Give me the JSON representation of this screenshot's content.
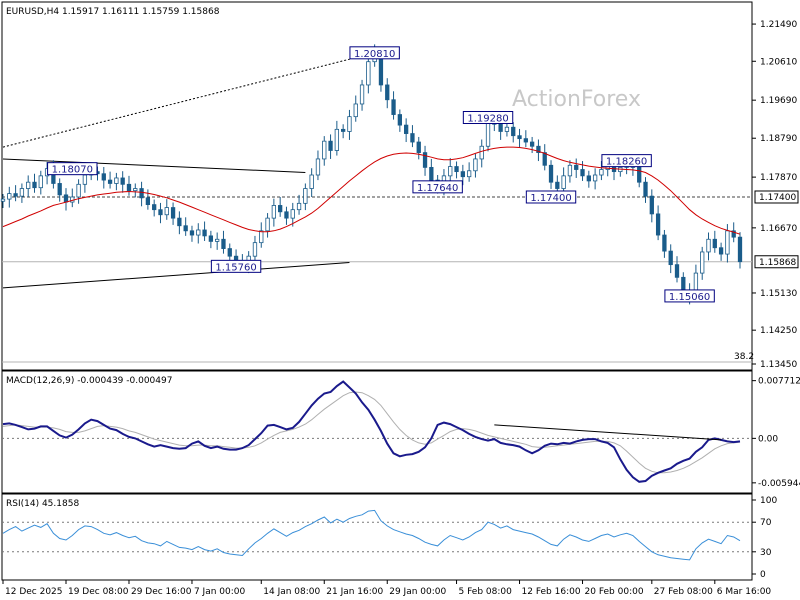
{
  "chart_data": [
    {
      "type": "candlestick",
      "header": "EURUSD,H4  1.15917 1.16111 1.15759 1.15868",
      "watermark": "ActionForex",
      "ylim": [
        1.1345,
        1.2187
      ],
      "y_ticks": [
        "1.21490",
        "1.20610",
        "1.19690",
        "1.18790",
        "1.17870",
        "1.16670",
        "1.15130",
        "1.14250",
        "1.13450"
      ],
      "y_tick_values": [
        1.2149,
        1.2061,
        1.1969,
        1.1879,
        1.1787,
        1.1667,
        1.1513,
        1.1425,
        1.1345
      ],
      "current_price": "1.15868",
      "current_price_value": 1.15868,
      "level_marker": "1.17400",
      "level_marker_value": 1.174,
      "fib_label": "38.2",
      "price_labels": [
        {
          "text": "1.20810",
          "x_index": 59,
          "value": 1.2081
        },
        {
          "text": "1.19280",
          "x_index": 77,
          "value": 1.1928
        },
        {
          "text": "1.18070",
          "x_index": 11,
          "value": 1.1807
        },
        {
          "text": "1.17640",
          "x_index": 69,
          "value": 1.1764
        },
        {
          "text": "1.18260",
          "x_index": 99,
          "value": 1.1826
        },
        {
          "text": "1.17400",
          "x_index": 87,
          "value": 1.174
        },
        {
          "text": "1.15760",
          "x_index": 37,
          "value": 1.1576
        },
        {
          "text": "1.15060",
          "x_index": 109,
          "value": 1.1506
        }
      ],
      "close": [
        1.1735,
        1.1748,
        1.1742,
        1.176,
        1.1775,
        1.1762,
        1.179,
        1.1807,
        1.1772,
        1.1745,
        1.1728,
        1.174,
        1.177,
        1.1792,
        1.18,
        1.1795,
        1.178,
        1.1772,
        1.1785,
        1.177,
        1.1755,
        1.176,
        1.1738,
        1.1722,
        1.171,
        1.1698,
        1.1715,
        1.169,
        1.1672,
        1.166,
        1.165,
        1.1662,
        1.1648,
        1.1635,
        1.164,
        1.1618,
        1.16,
        1.1585,
        1.1576,
        1.16,
        1.1632,
        1.166,
        1.169,
        1.172,
        1.1705,
        1.169,
        1.171,
        1.1725,
        1.176,
        1.1792,
        1.183,
        1.1872,
        1.185,
        1.19,
        1.1895,
        1.193,
        1.196,
        1.2005,
        1.206,
        1.2081,
        1.2005,
        1.197,
        1.1935,
        1.191,
        1.189,
        1.187,
        1.1845,
        1.181,
        1.178,
        1.1764,
        1.179,
        1.1812,
        1.18,
        1.1788,
        1.1802,
        1.183,
        1.186,
        1.192,
        1.1912,
        1.1895,
        1.1905,
        1.1885,
        1.1878,
        1.187,
        1.186,
        1.1845,
        1.1815,
        1.1775,
        1.176,
        1.179,
        1.1815,
        1.1805,
        1.179,
        1.1778,
        1.1792,
        1.1805,
        1.1812,
        1.18,
        1.181,
        1.182,
        1.181,
        1.1775,
        1.1742,
        1.17,
        1.165,
        1.1612,
        1.158,
        1.155,
        1.152,
        1.1506,
        1.156,
        1.161,
        1.164,
        1.162,
        1.1605,
        1.166,
        1.1645,
        1.1587
      ],
      "ma": [
        1.167,
        1.1676,
        1.1682,
        1.1688,
        1.1695,
        1.1701,
        1.1707,
        1.1714,
        1.172,
        1.1724,
        1.1728,
        1.1732,
        1.1736,
        1.1739,
        1.1742,
        1.1745,
        1.1747,
        1.1749,
        1.1751,
        1.1752,
        1.1753,
        1.1752,
        1.1751,
        1.1749,
        1.1746,
        1.1742,
        1.1738,
        1.1733,
        1.1728,
        1.1722,
        1.1716,
        1.171,
        1.1704,
        1.1698,
        1.1692,
        1.1686,
        1.168,
        1.1674,
        1.1668,
        1.1663,
        1.166,
        1.1658,
        1.1658,
        1.166,
        1.1664,
        1.167,
        1.1677,
        1.1685,
        1.1693,
        1.1702,
        1.1713,
        1.1726,
        1.1739,
        1.1752,
        1.1765,
        1.1778,
        1.179,
        1.1802,
        1.1813,
        1.1823,
        1.1831,
        1.1837,
        1.1841,
        1.1843,
        1.1844,
        1.1843,
        1.1841,
        1.1838,
        1.1834,
        1.183,
        1.1828,
        1.1828,
        1.183,
        1.1833,
        1.1838,
        1.1843,
        1.1848,
        1.1852,
        1.1855,
        1.1857,
        1.1858,
        1.1858,
        1.1857,
        1.1855,
        1.1852,
        1.1848,
        1.1843,
        1.1837,
        1.1831,
        1.1826,
        1.1822,
        1.1819,
        1.1816,
        1.1813,
        1.1811,
        1.1809,
        1.1808,
        1.1807,
        1.1806,
        1.1805,
        1.1804,
        1.1802,
        1.1798,
        1.179,
        1.178,
        1.1768,
        1.1755,
        1.174,
        1.1725,
        1.171,
        1.1698,
        1.1688,
        1.168,
        1.1672,
        1.1666,
        1.1661,
        1.1657,
        1.1652
      ],
      "ma_color": "#d00000",
      "up_color": "#1a5c8a",
      "down_color": "#1a5c8a",
      "lines": [
        {
          "style": "dashed",
          "from": [
            0,
            1.1858
          ],
          "to": [
            59,
            1.2081
          ]
        },
        {
          "style": "solid",
          "from": [
            0,
            1.183
          ],
          "to": [
            48,
            1.1798
          ]
        },
        {
          "style": "solid",
          "from": [
            0,
            1.1525
          ],
          "to": [
            55,
            1.1585
          ]
        }
      ]
    },
    {
      "type": "line",
      "label": "MACD(12,26,9) -0.000439 -0.000497",
      "ylim": [
        -0.0065,
        0.0082
      ],
      "y_ticks": [
        "0.007712",
        "0.00",
        "-0.005944"
      ],
      "y_tick_values": [
        0.007712,
        0.0,
        -0.005944
      ],
      "zero_level": 0.0,
      "series": [
        {
          "values": [
            0.0019,
            0.002,
            0.0018,
            0.0015,
            0.0012,
            0.0013,
            0.0016,
            0.0016,
            0.001,
            0.0004,
            0.0001,
            0.0005,
            0.0012,
            0.002,
            0.0025,
            0.0023,
            0.0018,
            0.0013,
            0.0011,
            0.0006,
            0.0002,
            0.0,
            -0.0004,
            -0.0008,
            -0.0011,
            -0.0009,
            -0.0011,
            -0.0013,
            -0.0014,
            -0.0013,
            -0.0007,
            -0.0004,
            -0.001,
            -0.0013,
            -0.0011,
            -0.0014,
            -0.0015,
            -0.0015,
            -0.0013,
            -0.0009,
            -0.0001,
            0.0007,
            0.0017,
            0.0018,
            0.0015,
            0.0012,
            0.0014,
            0.0022,
            0.0033,
            0.0044,
            0.0053,
            0.006,
            0.0062,
            0.007,
            0.0076,
            0.0068,
            0.006,
            0.0048,
            0.0038,
            0.0025,
            0.001,
            -0.0007,
            -0.002,
            -0.0024,
            -0.0022,
            -0.0021,
            -0.0018,
            -0.0012,
            0.0,
            0.0018,
            0.0021,
            0.0019,
            0.0015,
            0.0011,
            0.0006,
            0.0002,
            -0.0001,
            -0.0003,
            -0.0001,
            -0.0006,
            -0.0008,
            -0.0009,
            -0.0011,
            -0.0016,
            -0.002,
            -0.0016,
            -0.001,
            -0.0007,
            -0.0008,
            -0.0006,
            -0.0007,
            -0.0004,
            -0.0002,
            -0.0001,
            -0.0001,
            -0.0004,
            -0.0006,
            -0.0012,
            -0.0028,
            -0.0042,
            -0.0052,
            -0.0058,
            -0.0057,
            -0.005,
            -0.0046,
            -0.0043,
            -0.004,
            -0.0034,
            -0.003,
            -0.0027,
            -0.0018,
            -0.0012,
            -0.0002,
            0.0,
            -0.0002,
            -0.0004,
            -0.0005,
            -0.0004
          ],
          "color": "#1a1a8c"
        },
        {
          "values": [
            0.0016,
            0.0017,
            0.0018,
            0.0017,
            0.0016,
            0.0015,
            0.0015,
            0.0015,
            0.0014,
            0.0012,
            0.0009,
            0.0008,
            0.0008,
            0.001,
            0.0013,
            0.0016,
            0.0017,
            0.0016,
            0.0015,
            0.0013,
            0.001,
            0.0008,
            0.0005,
            0.0002,
            -0.0001,
            -0.0003,
            -0.0005,
            -0.0007,
            -0.0009,
            -0.001,
            -0.001,
            -0.0009,
            -0.0009,
            -0.001,
            -0.001,
            -0.0011,
            -0.0012,
            -0.0013,
            -0.0013,
            -0.0012,
            -0.001,
            -0.0006,
            -0.0001,
            0.0004,
            0.0008,
            0.001,
            0.0012,
            0.0015,
            0.0019,
            0.0025,
            0.0032,
            0.0039,
            0.0045,
            0.0051,
            0.0057,
            0.0061,
            0.0062,
            0.0061,
            0.0057,
            0.0052,
            0.0044,
            0.0033,
            0.0022,
            0.0012,
            0.0004,
            -0.0002,
            -0.0006,
            -0.0008,
            -0.0006,
            -0.0001,
            0.0004,
            0.0009,
            0.0012,
            0.0013,
            0.0012,
            0.001,
            0.0007,
            0.0004,
            0.0002,
            0.0,
            -0.0002,
            -0.0004,
            -0.0006,
            -0.0008,
            -0.0011,
            -0.0012,
            -0.0012,
            -0.0011,
            -0.001,
            -0.0009,
            -0.0008,
            -0.0007,
            -0.0006,
            -0.0005,
            -0.0004,
            -0.0004,
            -0.0004,
            -0.0006,
            -0.001,
            -0.0017,
            -0.0025,
            -0.0033,
            -0.004,
            -0.0044,
            -0.0046,
            -0.0046,
            -0.0045,
            -0.0043,
            -0.004,
            -0.0036,
            -0.0031,
            -0.0026,
            -0.002,
            -0.0014,
            -0.001,
            -0.0007,
            -0.0006,
            -0.0005
          ],
          "color": "#b0b0b0"
        }
      ],
      "lines": [
        {
          "style": "solid",
          "from": [
            78,
            0.0018
          ],
          "to": [
            114,
            -0.0002
          ]
        }
      ]
    },
    {
      "type": "line",
      "label": "RSI(14) 45.1858",
      "ylim": [
        0,
        100
      ],
      "y_ticks": [
        "100",
        "70",
        "30",
        "0"
      ],
      "y_tick_values": [
        100,
        70,
        30,
        0
      ],
      "levels": [
        70,
        30
      ],
      "series": [
        {
          "values": [
            55,
            60,
            64,
            58,
            62,
            66,
            63,
            68,
            55,
            48,
            46,
            52,
            60,
            65,
            64,
            60,
            55,
            53,
            56,
            52,
            49,
            51,
            45,
            42,
            41,
            38,
            44,
            40,
            36,
            35,
            33,
            37,
            33,
            31,
            34,
            29,
            27,
            26,
            25,
            34,
            42,
            48,
            55,
            61,
            56,
            51,
            56,
            59,
            64,
            68,
            73,
            77,
            69,
            74,
            70,
            75,
            78,
            80,
            85,
            86,
            72,
            65,
            60,
            57,
            54,
            52,
            48,
            43,
            40,
            38,
            46,
            52,
            49,
            46,
            50,
            56,
            60,
            70,
            67,
            62,
            65,
            60,
            58,
            56,
            54,
            50,
            45,
            40,
            38,
            47,
            53,
            50,
            46,
            44,
            48,
            52,
            54,
            50,
            53,
            55,
            52,
            44,
            37,
            30,
            26,
            24,
            22,
            21,
            20,
            19,
            34,
            42,
            47,
            44,
            41,
            52,
            50,
            45
          ],
          "color": "#3a8fd8"
        }
      ]
    }
  ],
  "x_axis": {
    "labels": [
      "12 Dec 2025",
      "19 Dec 08:00",
      "29 Dec 16:00",
      "7 Jan 00:00",
      "14 Jan 08:00",
      "21 Jan 16:00",
      "29 Jan 00:00",
      "5 Feb 08:00",
      "12 Feb 16:00",
      "20 Feb 00:00",
      "27 Feb 08:00",
      "6 Mar 16:00"
    ],
    "label_index": [
      0,
      10,
      20,
      30,
      41,
      51,
      61,
      72,
      82,
      92,
      103,
      113
    ]
  },
  "colors": {
    "background": "#ffffff",
    "label_border": "#000080",
    "label_text": "#1a1a8c",
    "grid_dashed": "#7a7a7a",
    "hline": "#b4b4b4",
    "panel_border": "#000000"
  }
}
